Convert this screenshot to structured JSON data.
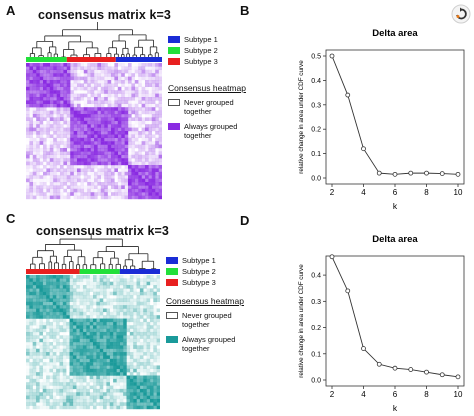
{
  "panels": {
    "A": {
      "letter": "A",
      "title": "consensus matrix k=3",
      "subtypes": [
        "Subtype 1",
        "Subtype 2",
        "Subtype 3"
      ],
      "subtype_colors": {
        "Subtype 1": "#1a2cd6",
        "Subtype 2": "#22e03a",
        "Subtype 3": "#e82020"
      },
      "heatmap_legend": {
        "heading": "Consensus heatmap",
        "never": "Never grouped together",
        "always": "Always grouped together"
      },
      "heat_color": "#8a2be2"
    },
    "C": {
      "letter": "C",
      "title": "consensus matrix k=3",
      "subtypes": [
        "Subtype 1",
        "Subtype 2",
        "Subtype 3"
      ],
      "subtype_colors": {
        "Subtype 1": "#1a2cd6",
        "Subtype 2": "#22e03a",
        "Subtype 3": "#e82020"
      },
      "heatmap_legend": {
        "heading": "Consensus heatmap",
        "never": "Never grouped together",
        "always": "Always grouped together"
      },
      "heat_color": "#1a9a9a"
    },
    "B": {
      "letter": "B"
    },
    "D": {
      "letter": "D"
    }
  },
  "chart_data": [
    {
      "id": "B",
      "type": "line",
      "title": "Delta area",
      "xlabel": "k",
      "ylabel": "relative change in area under CDF curve",
      "x": [
        2,
        3,
        4,
        5,
        6,
        7,
        8,
        9,
        10
      ],
      "y": [
        0.5,
        0.34,
        0.12,
        0.02,
        0.015,
        0.02,
        0.02,
        0.018,
        0.015
      ],
      "xlim": [
        2,
        10
      ],
      "ylim": [
        0,
        0.5
      ],
      "xticks": [
        2,
        4,
        6,
        8,
        10
      ],
      "yticks": [
        0.0,
        0.1,
        0.2,
        0.3,
        0.4,
        0.5
      ],
      "grid": false,
      "marker": "open-circle"
    },
    {
      "id": "D",
      "type": "line",
      "title": "Delta area",
      "xlabel": "k",
      "ylabel": "relative change in area under CDF curve",
      "x": [
        2,
        3,
        4,
        5,
        6,
        7,
        8,
        9,
        10
      ],
      "y": [
        0.47,
        0.34,
        0.12,
        0.06,
        0.045,
        0.04,
        0.03,
        0.02,
        0.012
      ],
      "xlim": [
        2,
        10
      ],
      "ylim": [
        0,
        0.45
      ],
      "xticks": [
        2,
        4,
        6,
        8,
        10
      ],
      "yticks": [
        0.0,
        0.1,
        0.2,
        0.3,
        0.4
      ],
      "grid": false,
      "marker": "open-circle"
    }
  ],
  "icons": {
    "corner": "circular-arrow-icon"
  }
}
